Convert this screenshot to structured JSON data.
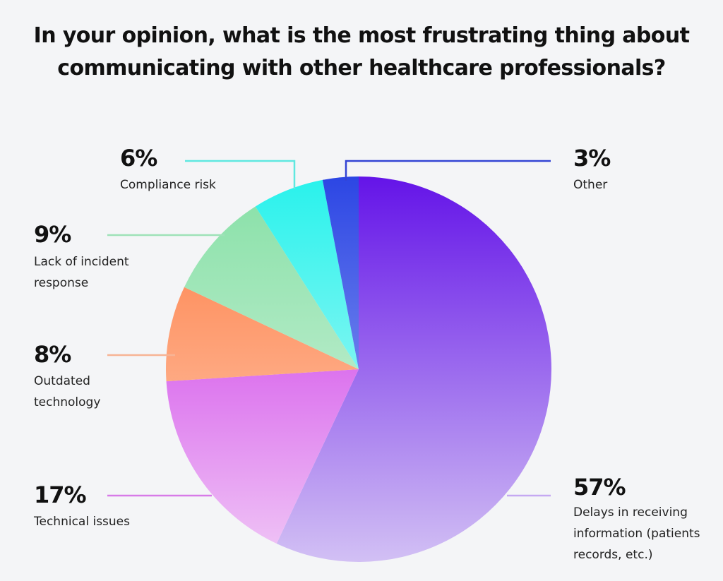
{
  "chart_data": {
    "type": "pie",
    "title_lines": [
      "In your opinion, what is the most frustrating thing about",
      "communicating with other healthcare professionals?"
    ],
    "slices": [
      {
        "percent_label": "57%",
        "value": 57,
        "label_lines": [
          "Delays in receiving",
          "information (patients",
          "records, etc.)"
        ],
        "color_top": "#6414e8",
        "color_bottom": "#d2c0f4"
      },
      {
        "percent_label": "17%",
        "value": 17,
        "label_lines": [
          "Technical issues"
        ],
        "color_top": "#c81ee6",
        "color_bottom": "#f0c8f6"
      },
      {
        "percent_label": "8%",
        "value": 8,
        "label_lines": [
          "Outdated",
          "technology"
        ],
        "color_top": "#ff7a40",
        "color_bottom": "#fcd2bc"
      },
      {
        "percent_label": "9%",
        "value": 9,
        "label_lines": [
          "Lack of incident",
          "response"
        ],
        "color_top": "#86e0a6",
        "color_bottom": "#ddf4e4"
      },
      {
        "percent_label": "6%",
        "value": 6,
        "label_lines": [
          "Compliance risk"
        ],
        "color_top": "#28f2ec",
        "color_bottom": "#cef9f7"
      },
      {
        "percent_label": "3%",
        "value": 3,
        "label_lines": [
          "Other"
        ],
        "color_top": "#2c46e4",
        "color_bottom": "#a8b6f4"
      }
    ],
    "leader_colors": [
      "#c5a8f2",
      "#d77ae8",
      "#f7b495",
      "#9ee2b8",
      "#5fe8e0",
      "#3344d4"
    ]
  }
}
